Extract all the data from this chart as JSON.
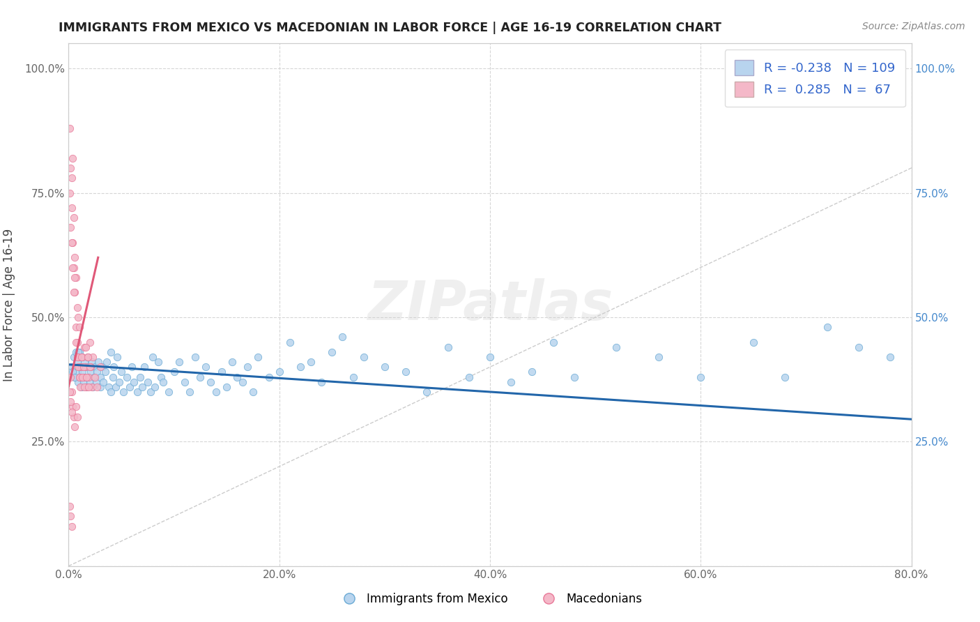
{
  "title": "IMMIGRANTS FROM MEXICO VS MACEDONIAN IN LABOR FORCE | AGE 16-19 CORRELATION CHART",
  "source_text": "Source: ZipAtlas.com",
  "ylabel": "In Labor Force | Age 16-19",
  "x_min": 0.0,
  "x_max": 0.8,
  "y_min": 0.0,
  "y_max": 1.05,
  "x_ticks": [
    0.0,
    0.2,
    0.4,
    0.6,
    0.8
  ],
  "x_tick_labels": [
    "0.0%",
    "20.0%",
    "40.0%",
    "60.0%",
    "80.0%"
  ],
  "y_tick_values": [
    0.0,
    0.25,
    0.5,
    0.75,
    1.0
  ],
  "y_tick_labels_left": [
    "",
    "25.0%",
    "50.0%",
    "75.0%",
    "100.0%"
  ],
  "y_tick_labels_right": [
    "",
    "25.0%",
    "50.0%",
    "75.0%",
    "100.0%"
  ],
  "legend_R1": "-0.238",
  "legend_N1": "109",
  "legend_R2": "0.285",
  "legend_N2": "67",
  "blue_color": "#b8d4ee",
  "blue_edge_color": "#6aaad4",
  "blue_line_color": "#2266aa",
  "pink_color": "#f4b8c8",
  "pink_edge_color": "#e87898",
  "pink_line_color": "#e05878",
  "watermark": "ZIPatlas",
  "blue_trend_x0": 0.0,
  "blue_trend_y0": 0.405,
  "blue_trend_x1": 0.8,
  "blue_trend_y1": 0.295,
  "pink_trend_x0": 0.0,
  "pink_trend_y0": 0.36,
  "pink_trend_x1": 0.028,
  "pink_trend_y1": 0.62,
  "diag_line": true,
  "blue_scatter_x": [
    0.003,
    0.005,
    0.006,
    0.007,
    0.008,
    0.008,
    0.009,
    0.01,
    0.01,
    0.011,
    0.012,
    0.012,
    0.013,
    0.014,
    0.015,
    0.016,
    0.016,
    0.017,
    0.018,
    0.018,
    0.019,
    0.02,
    0.021,
    0.022,
    0.023,
    0.024,
    0.025,
    0.026,
    0.027,
    0.028,
    0.03,
    0.03,
    0.032,
    0.033,
    0.035,
    0.036,
    0.038,
    0.04,
    0.04,
    0.042,
    0.043,
    0.045,
    0.046,
    0.048,
    0.05,
    0.052,
    0.055,
    0.058,
    0.06,
    0.062,
    0.065,
    0.068,
    0.07,
    0.072,
    0.075,
    0.078,
    0.08,
    0.082,
    0.085,
    0.088,
    0.09,
    0.095,
    0.1,
    0.105,
    0.11,
    0.115,
    0.12,
    0.125,
    0.13,
    0.135,
    0.14,
    0.145,
    0.15,
    0.155,
    0.16,
    0.165,
    0.17,
    0.175,
    0.18,
    0.19,
    0.2,
    0.21,
    0.22,
    0.23,
    0.24,
    0.25,
    0.26,
    0.27,
    0.28,
    0.3,
    0.32,
    0.34,
    0.36,
    0.38,
    0.4,
    0.42,
    0.44,
    0.46,
    0.48,
    0.52,
    0.56,
    0.6,
    0.65,
    0.68,
    0.72,
    0.75,
    0.78,
    0.004,
    0.006,
    0.009
  ],
  "blue_scatter_y": [
    0.4,
    0.42,
    0.38,
    0.43,
    0.39,
    0.41,
    0.37,
    0.43,
    0.38,
    0.4,
    0.36,
    0.42,
    0.39,
    0.37,
    0.41,
    0.38,
    0.4,
    0.36,
    0.42,
    0.38,
    0.4,
    0.37,
    0.39,
    0.41,
    0.36,
    0.38,
    0.4,
    0.37,
    0.39,
    0.41,
    0.36,
    0.38,
    0.4,
    0.37,
    0.39,
    0.41,
    0.36,
    0.43,
    0.35,
    0.38,
    0.4,
    0.36,
    0.42,
    0.37,
    0.39,
    0.35,
    0.38,
    0.36,
    0.4,
    0.37,
    0.35,
    0.38,
    0.36,
    0.4,
    0.37,
    0.35,
    0.42,
    0.36,
    0.41,
    0.38,
    0.37,
    0.35,
    0.39,
    0.41,
    0.37,
    0.35,
    0.42,
    0.38,
    0.4,
    0.37,
    0.35,
    0.39,
    0.36,
    0.41,
    0.38,
    0.37,
    0.4,
    0.35,
    0.42,
    0.38,
    0.39,
    0.45,
    0.4,
    0.41,
    0.37,
    0.43,
    0.46,
    0.38,
    0.42,
    0.4,
    0.39,
    0.35,
    0.44,
    0.38,
    0.42,
    0.37,
    0.39,
    0.45,
    0.38,
    0.44,
    0.42,
    0.38,
    0.45,
    0.38,
    0.48,
    0.44,
    0.42,
    0.39,
    0.38,
    0.43
  ],
  "pink_scatter_x": [
    0.001,
    0.001,
    0.002,
    0.002,
    0.003,
    0.003,
    0.004,
    0.004,
    0.005,
    0.005,
    0.006,
    0.006,
    0.007,
    0.007,
    0.008,
    0.008,
    0.009,
    0.009,
    0.01,
    0.01,
    0.011,
    0.012,
    0.013,
    0.014,
    0.015,
    0.016,
    0.017,
    0.018,
    0.019,
    0.02,
    0.021,
    0.022,
    0.023,
    0.025,
    0.027,
    0.03,
    0.003,
    0.004,
    0.005,
    0.006,
    0.007,
    0.008,
    0.009,
    0.01,
    0.011,
    0.012,
    0.013,
    0.014,
    0.015,
    0.016,
    0.017,
    0.018,
    0.019,
    0.02,
    0.002,
    0.003,
    0.004,
    0.005,
    0.006,
    0.007,
    0.008,
    0.001,
    0.002,
    0.003,
    0.001,
    0.002,
    0.003
  ],
  "pink_scatter_y": [
    0.88,
    0.75,
    0.8,
    0.68,
    0.72,
    0.78,
    0.65,
    0.82,
    0.7,
    0.6,
    0.62,
    0.55,
    0.58,
    0.48,
    0.45,
    0.52,
    0.42,
    0.5,
    0.4,
    0.48,
    0.38,
    0.4,
    0.42,
    0.38,
    0.44,
    0.4,
    0.36,
    0.42,
    0.38,
    0.45,
    0.4,
    0.36,
    0.42,
    0.38,
    0.36,
    0.4,
    0.65,
    0.6,
    0.55,
    0.58,
    0.45,
    0.42,
    0.4,
    0.38,
    0.36,
    0.42,
    0.38,
    0.4,
    0.36,
    0.44,
    0.38,
    0.42,
    0.36,
    0.4,
    0.38,
    0.35,
    0.32,
    0.3,
    0.28,
    0.32,
    0.3,
    0.12,
    0.1,
    0.08,
    0.35,
    0.33,
    0.31
  ]
}
